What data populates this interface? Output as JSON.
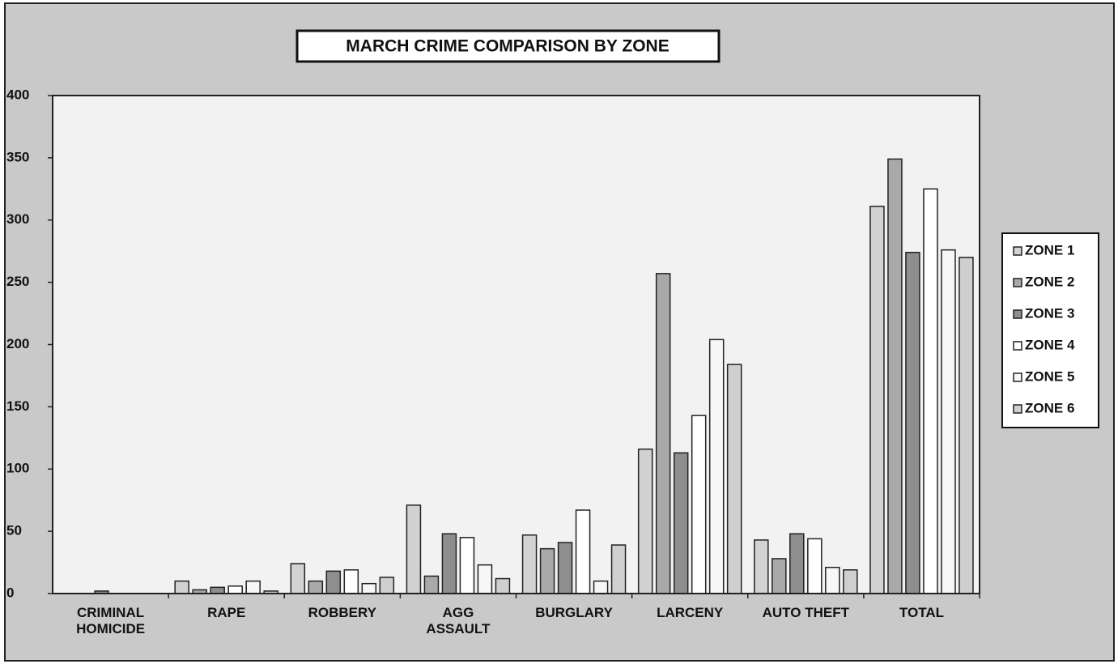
{
  "chart_data": {
    "type": "bar",
    "title": "MARCH CRIME COMPARISON BY ZONE",
    "categories": [
      "CRIMINAL\nHOMICIDE",
      "RAPE",
      "ROBBERY",
      "AGG\nASSAULT",
      "BURGLARY",
      "LARCENY",
      "AUTO THEFT",
      "TOTAL"
    ],
    "series": [
      {
        "name": "ZONE 1",
        "color": "#d2d2d2",
        "values": [
          0,
          10,
          24,
          71,
          47,
          116,
          43,
          311
        ]
      },
      {
        "name": "ZONE 2",
        "color": "#a9a9a9",
        "values": [
          0,
          3,
          10,
          14,
          36,
          257,
          28,
          349
        ]
      },
      {
        "name": "ZONE 3",
        "color": "#8e8e8e",
        "values": [
          2,
          5,
          18,
          48,
          41,
          113,
          48,
          274
        ]
      },
      {
        "name": "ZONE 4",
        "color": "#ffffff",
        "values": [
          0,
          6,
          19,
          45,
          67,
          143,
          44,
          325
        ]
      },
      {
        "name": "ZONE 5",
        "color": "#f7f7f7",
        "values": [
          0,
          10,
          8,
          23,
          10,
          204,
          21,
          276
        ]
      },
      {
        "name": "ZONE 6",
        "color": "#cfcfcf",
        "values": [
          0,
          2,
          13,
          12,
          39,
          184,
          19,
          270
        ]
      }
    ],
    "ylim": [
      0,
      400
    ],
    "yticks": [
      0,
      50,
      100,
      150,
      200,
      250,
      300,
      350,
      400
    ],
    "legend": "right"
  }
}
